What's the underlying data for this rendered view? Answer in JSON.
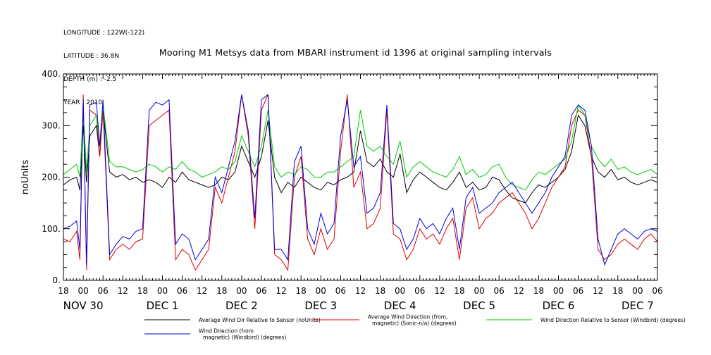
{
  "header": {
    "meta_lines": [
      "LONGITUDE : 122W(-122)",
      "LATITUDE : 36.8N",
      "DEPTH (m) : -2.5",
      "YEAR : 2010"
    ],
    "title": "Mooring M1 Metsys data from MBARI instrument id 1396 at original sampling intervals"
  },
  "chart_data": {
    "type": "line",
    "title": "Mooring M1 Metsys data from MBARI instrument id 1396 at original sampling intervals",
    "ylabel": "noUnits",
    "xlabel": "",
    "ylim": [
      0,
      400
    ],
    "yticks": [
      0,
      100,
      200,
      300,
      400
    ],
    "ytick_labels": [
      "0.",
      "100.",
      "200.",
      "300.",
      "400."
    ],
    "xlim": [
      -6,
      174
    ],
    "x_units": "hours from 2010-11-30 00:00",
    "xtick_hours": [
      -6,
      0,
      6,
      12,
      18,
      24,
      30,
      36,
      42,
      48,
      54,
      60,
      66,
      72,
      78,
      84,
      90,
      96,
      102,
      108,
      114,
      120,
      126,
      132,
      138,
      144,
      150,
      156,
      162,
      168,
      174
    ],
    "xtick_labels": [
      "18",
      "00",
      "06",
      "12",
      "18",
      "00",
      "06",
      "12",
      "18",
      "00",
      "06",
      "12",
      "18",
      "00",
      "06",
      "12",
      "18",
      "00",
      "06",
      "12",
      "18",
      "00",
      "06",
      "12",
      "18",
      "00",
      "06",
      "12",
      "18",
      "00",
      "06"
    ],
    "day_labels": [
      {
        "hour": 0,
        "text": "NOV 30"
      },
      {
        "hour": 24,
        "text": "DEC  1"
      },
      {
        "hour": 48,
        "text": "DEC  2"
      },
      {
        "hour": 72,
        "text": "DEC  3"
      },
      {
        "hour": 96,
        "text": "DEC  4"
      },
      {
        "hour": 120,
        "text": "DEC  5"
      },
      {
        "hour": 144,
        "text": "DEC  6"
      },
      {
        "hour": 168,
        "text": "DEC  7"
      }
    ],
    "series": [
      {
        "name": "Average Wind Dir Relative to Sensor (noUnits)",
        "color": "#000000",
        "x": [
          -6,
          -4,
          -2,
          -1,
          0,
          1,
          2,
          4,
          5,
          6,
          8,
          10,
          12,
          14,
          16,
          18,
          20,
          22,
          24,
          26,
          28,
          30,
          32,
          34,
          36,
          38,
          40,
          42,
          44,
          46,
          48,
          50,
          52,
          54,
          56,
          58,
          60,
          62,
          64,
          66,
          68,
          70,
          72,
          74,
          76,
          78,
          80,
          82,
          84,
          86,
          88,
          90,
          92,
          94,
          96,
          98,
          100,
          102,
          104,
          106,
          108,
          110,
          112,
          114,
          116,
          118,
          120,
          122,
          124,
          126,
          128,
          130,
          132,
          134,
          136,
          138,
          140,
          142,
          144,
          146,
          148,
          150,
          152,
          154,
          156,
          158,
          160,
          162,
          164,
          166,
          168,
          170,
          172,
          174
        ],
        "y": [
          185,
          195,
          200,
          175,
          300,
          190,
          280,
          300,
          240,
          330,
          210,
          200,
          205,
          195,
          200,
          190,
          195,
          190,
          180,
          200,
          190,
          210,
          195,
          190,
          185,
          180,
          185,
          200,
          195,
          210,
          260,
          230,
          200,
          240,
          310,
          200,
          170,
          190,
          180,
          200,
          190,
          180,
          175,
          190,
          185,
          195,
          200,
          210,
          290,
          230,
          220,
          235,
          210,
          200,
          245,
          170,
          195,
          210,
          200,
          190,
          180,
          175,
          190,
          210,
          180,
          190,
          175,
          180,
          200,
          195,
          175,
          160,
          155,
          150,
          170,
          185,
          180,
          190,
          200,
          215,
          250,
          320,
          300,
          240,
          210,
          200,
          215,
          195,
          200,
          190,
          185,
          190,
          195,
          190
        ]
      },
      {
        "name": "Average Wind Direction (from, magnetic) (Sonic-n/a) (degrees)",
        "color": "#dd0000",
        "x": [
          -6,
          -4,
          -2,
          -1,
          0,
          1,
          2,
          4,
          5,
          6,
          8,
          10,
          12,
          14,
          16,
          18,
          20,
          22,
          24,
          26,
          28,
          30,
          32,
          34,
          36,
          38,
          40,
          42,
          44,
          46,
          48,
          50,
          52,
          54,
          56,
          58,
          60,
          62,
          64,
          66,
          68,
          70,
          72,
          74,
          76,
          78,
          80,
          82,
          84,
          86,
          88,
          90,
          92,
          94,
          96,
          98,
          100,
          102,
          104,
          106,
          108,
          110,
          112,
          114,
          116,
          118,
          120,
          122,
          124,
          126,
          128,
          130,
          132,
          134,
          136,
          138,
          140,
          142,
          144,
          146,
          148,
          150,
          152,
          154,
          156,
          158,
          160,
          162,
          164,
          166,
          168,
          170,
          172,
          174
        ],
        "y": [
          80,
          75,
          95,
          40,
          360,
          20,
          330,
          320,
          240,
          330,
          40,
          60,
          70,
          60,
          75,
          80,
          300,
          310,
          320,
          330,
          40,
          60,
          50,
          20,
          40,
          60,
          180,
          150,
          200,
          250,
          360,
          280,
          100,
          330,
          360,
          50,
          40,
          20,
          200,
          240,
          80,
          50,
          100,
          60,
          80,
          250,
          360,
          180,
          210,
          100,
          110,
          140,
          330,
          90,
          80,
          40,
          60,
          100,
          80,
          90,
          70,
          100,
          120,
          40,
          140,
          160,
          100,
          120,
          130,
          150,
          160,
          170,
          150,
          130,
          100,
          120,
          150,
          180,
          200,
          220,
          300,
          330,
          320,
          240,
          60,
          40,
          50,
          70,
          80,
          70,
          60,
          80,
          90,
          75
        ]
      },
      {
        "name": "Wind Direction Relative to Sensor (Windbird) (degrees)",
        "color": "#00cc00",
        "x": [
          -6,
          -4,
          -2,
          -1,
          0,
          1,
          2,
          4,
          5,
          6,
          8,
          10,
          12,
          14,
          16,
          18,
          20,
          22,
          24,
          26,
          28,
          30,
          32,
          34,
          36,
          38,
          40,
          42,
          44,
          46,
          48,
          50,
          52,
          54,
          56,
          58,
          60,
          62,
          64,
          66,
          68,
          70,
          72,
          74,
          76,
          78,
          80,
          82,
          84,
          86,
          88,
          90,
          92,
          94,
          96,
          98,
          100,
          102,
          104,
          106,
          108,
          110,
          112,
          114,
          116,
          118,
          120,
          122,
          124,
          126,
          128,
          130,
          132,
          134,
          136,
          138,
          140,
          142,
          144,
          146,
          148,
          150,
          152,
          154,
          156,
          158,
          160,
          162,
          164,
          166,
          168,
          170,
          172,
          174
        ],
        "y": [
          205,
          215,
          225,
          200,
          330,
          210,
          300,
          320,
          260,
          340,
          230,
          220,
          220,
          215,
          210,
          215,
          225,
          220,
          210,
          220,
          215,
          230,
          215,
          210,
          200,
          205,
          210,
          220,
          215,
          230,
          280,
          250,
          220,
          260,
          330,
          220,
          200,
          210,
          205,
          220,
          215,
          200,
          200,
          210,
          210,
          220,
          230,
          240,
          330,
          260,
          250,
          260,
          240,
          225,
          270,
          200,
          220,
          230,
          220,
          210,
          205,
          200,
          215,
          240,
          205,
          215,
          200,
          205,
          220,
          225,
          200,
          185,
          180,
          175,
          195,
          210,
          205,
          215,
          225,
          235,
          270,
          340,
          320,
          260,
          235,
          220,
          235,
          215,
          220,
          210,
          205,
          210,
          215,
          205
        ]
      },
      {
        "name": "Wind Direction (from, magnetic) (Windbird) (degrees)",
        "color": "#0000dd",
        "x": [
          -6,
          -4,
          -2,
          -1,
          0,
          1,
          2,
          4,
          5,
          6,
          8,
          10,
          12,
          14,
          16,
          18,
          20,
          22,
          24,
          26,
          28,
          30,
          32,
          34,
          36,
          38,
          40,
          42,
          44,
          46,
          48,
          50,
          52,
          54,
          56,
          58,
          60,
          62,
          64,
          66,
          68,
          70,
          72,
          74,
          76,
          78,
          80,
          82,
          84,
          86,
          88,
          90,
          92,
          94,
          96,
          98,
          100,
          102,
          104,
          106,
          108,
          110,
          112,
          114,
          116,
          118,
          120,
          122,
          124,
          126,
          128,
          130,
          132,
          134,
          136,
          138,
          140,
          142,
          144,
          146,
          148,
          150,
          152,
          154,
          156,
          158,
          160,
          162,
          164,
          166,
          168,
          170,
          172,
          174
        ],
        "y": [
          100,
          105,
          115,
          60,
          350,
          30,
          340,
          345,
          260,
          350,
          50,
          70,
          85,
          80,
          95,
          100,
          330,
          345,
          340,
          350,
          70,
          90,
          80,
          40,
          60,
          80,
          200,
          170,
          220,
          270,
          360,
          290,
          120,
          350,
          360,
          60,
          60,
          40,
          230,
          260,
          100,
          70,
          130,
          90,
          110,
          280,
          350,
          220,
          240,
          130,
          140,
          170,
          340,
          110,
          100,
          60,
          80,
          120,
          100,
          110,
          90,
          120,
          140,
          60,
          160,
          180,
          130,
          140,
          150,
          170,
          180,
          190,
          170,
          150,
          130,
          150,
          170,
          200,
          220,
          240,
          320,
          340,
          330,
          260,
          80,
          30,
          60,
          90,
          100,
          90,
          80,
          95,
          100,
          95
        ]
      }
    ],
    "legend": [
      {
        "lines": [
          "Average Wind Dir Relative to Sensor (noUnits)"
        ],
        "color": "#000000"
      },
      {
        "lines": [
          "Average Wind Direction (from,",
          "magnetic) (Sonic-n/a) (degrees)"
        ],
        "color": "#dd0000"
      },
      {
        "lines": [
          "Wind Direction Relative to Sensor (Windbird) (degrees)"
        ],
        "color": "#00cc00"
      },
      {
        "lines": [
          "Wind Direction (from",
          "magnetic) (Windbird) (degrees)"
        ],
        "color": "#0000dd"
      }
    ]
  }
}
